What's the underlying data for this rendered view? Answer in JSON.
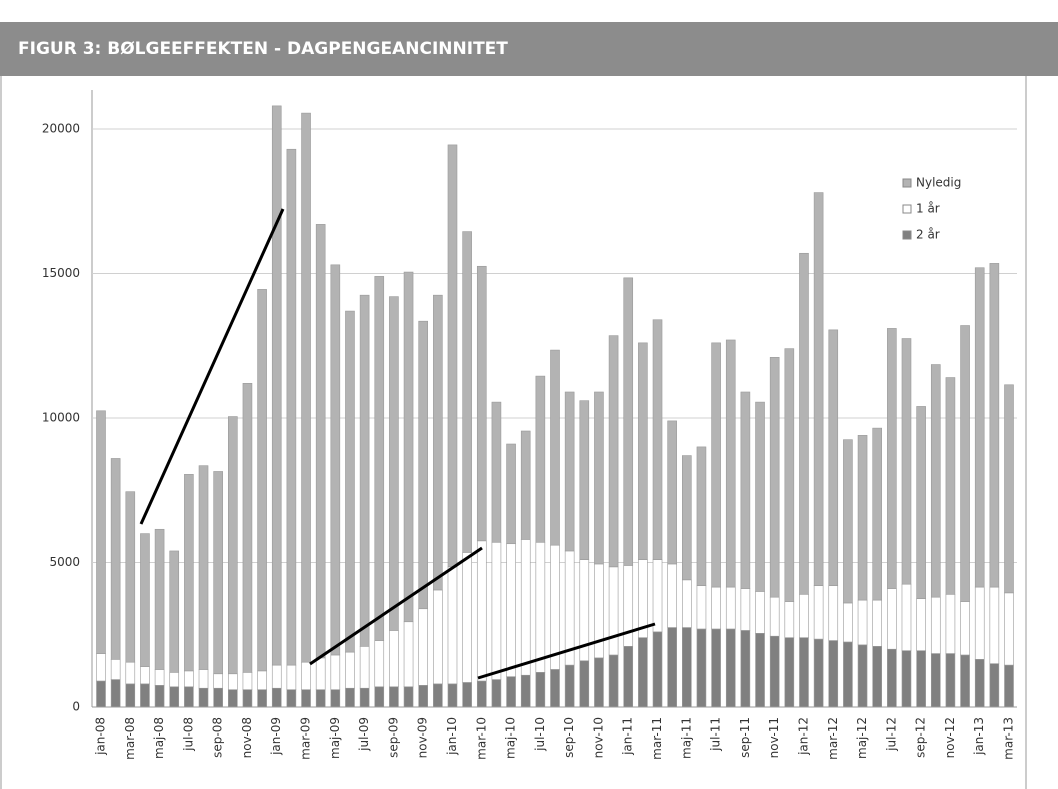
{
  "chart_data": {
    "type": "stacked_bar",
    "title": "FIGUR 3: BØLGEEFFEKTEN - DAGPENGEANCINNITET",
    "categories": [
      "jan-08",
      null,
      "mar-08",
      null,
      "maj-08",
      null,
      "jul-08",
      null,
      "sep-08",
      null,
      "nov-08",
      null,
      "jan-09",
      null,
      "mar-09",
      null,
      "maj-09",
      null,
      "jul-09",
      null,
      "sep-09",
      null,
      "nov-09",
      null,
      "jan-10",
      null,
      "mar-10",
      null,
      "maj-10",
      null,
      "jul-10",
      null,
      "sep-10",
      null,
      "nov-10",
      null,
      "jan-11",
      null,
      "mar-11",
      null,
      "maj-11",
      null,
      "jul-11",
      null,
      "sep-11",
      null,
      "nov-11",
      null,
      "jan-12",
      null,
      "mar-12",
      null,
      "maj-12",
      null,
      "jul-12",
      null,
      "sep-12",
      null,
      "nov-12",
      null,
      "jan-13",
      null,
      "mar-13"
    ],
    "series": [
      {
        "name": "Nyledig",
        "color": "#b3b3b3",
        "values": [
          8400,
          6950,
          5900,
          4600,
          4850,
          4200,
          6800,
          7050,
          7000,
          8900,
          10000,
          13200,
          19350,
          17850,
          19000,
          15000,
          13500,
          11800,
          12150,
          12600,
          11550,
          12100,
          9950,
          10200,
          14600,
          11100,
          9500,
          4850,
          3450,
          3750,
          5750,
          6750,
          5500,
          5500,
          5950,
          8000,
          9950,
          7500,
          8300,
          4950,
          4300,
          4800,
          8450,
          8550,
          6800,
          6550,
          8300,
          8750,
          11800,
          13600,
          8850,
          5650,
          5700,
          5950,
          9000,
          8500,
          6650,
          8050,
          7500,
          9550,
          11050,
          11200,
          7200
        ]
      },
      {
        "name": "1 år",
        "color": "#ffffff",
        "values": [
          950,
          700,
          750,
          600,
          550,
          500,
          550,
          650,
          500,
          550,
          600,
          650,
          800,
          850,
          950,
          1100,
          1200,
          1250,
          1450,
          1600,
          1950,
          2250,
          2650,
          3250,
          4050,
          4500,
          4850,
          4750,
          4600,
          4700,
          4500,
          4300,
          3950,
          3500,
          3250,
          3050,
          2800,
          2700,
          2500,
          2200,
          1650,
          1500,
          1450,
          1450,
          1450,
          1450,
          1350,
          1250,
          1500,
          1850,
          1900,
          1350,
          1550,
          1600,
          2100,
          2300,
          1800,
          1950,
          2050,
          1850,
          2500,
          2650,
          2500
        ]
      },
      {
        "name": "2 år",
        "color": "#808080",
        "values": [
          900,
          950,
          800,
          800,
          750,
          700,
          700,
          650,
          650,
          600,
          600,
          600,
          650,
          600,
          600,
          600,
          600,
          650,
          650,
          700,
          700,
          700,
          750,
          800,
          800,
          850,
          900,
          950,
          1050,
          1100,
          1200,
          1300,
          1450,
          1600,
          1700,
          1800,
          2100,
          2400,
          2600,
          2750,
          2750,
          2700,
          2700,
          2700,
          2650,
          2550,
          2450,
          2400,
          2400,
          2350,
          2300,
          2250,
          2150,
          2100,
          2000,
          1950,
          1950,
          1850,
          1850,
          1800,
          1650,
          1500,
          1450
        ]
      }
    ],
    "ylim": [
      0,
      20000
    ],
    "yticks": [
      0,
      5000,
      10000,
      15000,
      20000
    ],
    "grid": true,
    "legend": "upper right"
  }
}
